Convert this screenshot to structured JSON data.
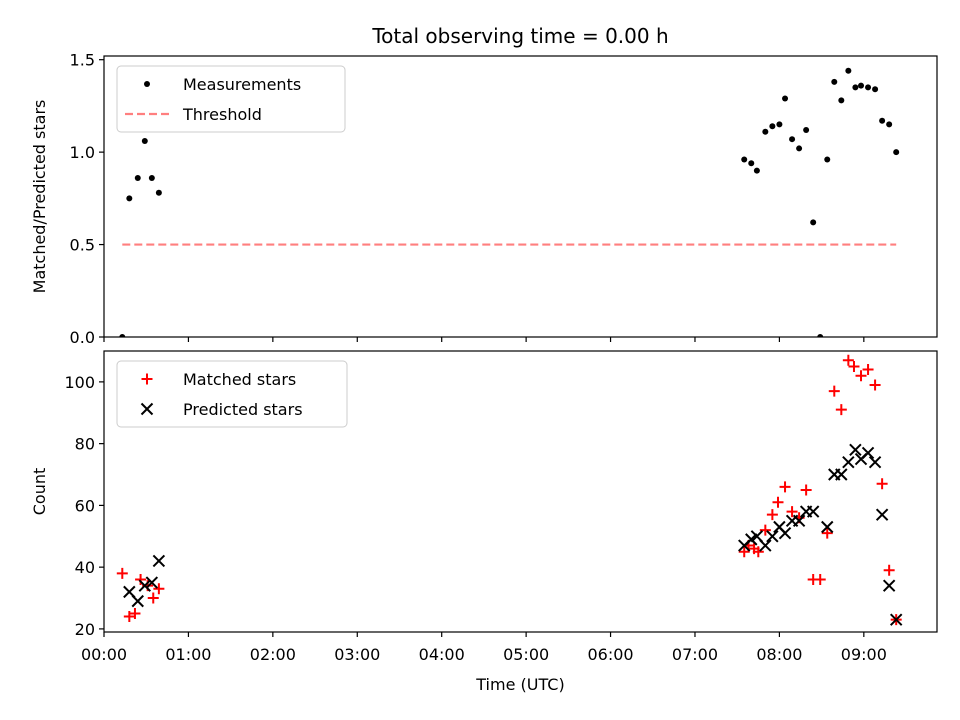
{
  "chart_data": [
    {
      "type": "scatter",
      "title": "Total observing time = 0.00 h",
      "xlabel": "",
      "ylabel": "Matched/Predicted stars",
      "ylim": [
        0,
        1.52
      ],
      "xlim": [
        "00:00",
        "09:52"
      ],
      "yticks": [
        "0.0",
        "0.5",
        "1.0",
        "1.5"
      ],
      "legend_position": "top-left",
      "grid": false,
      "series": [
        {
          "name": "Measurements",
          "marker": "dot",
          "color": "#000000",
          "points": [
            [
              "00:13",
              0.0
            ],
            [
              "00:18",
              0.75
            ],
            [
              "00:24",
              0.86
            ],
            [
              "00:29",
              1.06
            ],
            [
              "00:34",
              0.86
            ],
            [
              "00:39",
              0.78
            ],
            [
              "07:35",
              0.96
            ],
            [
              "07:40",
              0.94
            ],
            [
              "07:44",
              0.9
            ],
            [
              "07:50",
              1.11
            ],
            [
              "07:55",
              1.14
            ],
            [
              "08:00",
              1.15
            ],
            [
              "08:04",
              1.29
            ],
            [
              "08:09",
              1.07
            ],
            [
              "08:14",
              1.02
            ],
            [
              "08:19",
              1.12
            ],
            [
              "08:24",
              0.62
            ],
            [
              "08:29",
              0.0
            ],
            [
              "08:34",
              0.96
            ],
            [
              "08:39",
              1.38
            ],
            [
              "08:44",
              1.28
            ],
            [
              "08:49",
              1.44
            ],
            [
              "08:54",
              1.35
            ],
            [
              "08:58",
              1.36
            ],
            [
              "09:03",
              1.35
            ],
            [
              "09:08",
              1.34
            ],
            [
              "09:13",
              1.17
            ],
            [
              "09:18",
              1.15
            ],
            [
              "09:23",
              1.0
            ]
          ]
        },
        {
          "name": "Threshold",
          "marker": "dashed-line",
          "color": "#ff7f7f",
          "points": [
            [
              "00:13",
              0.5
            ],
            [
              "09:23",
              0.5
            ]
          ]
        }
      ]
    },
    {
      "type": "scatter",
      "title": "",
      "xlabel": "Time (UTC)",
      "ylabel": "Count",
      "ylim": [
        19,
        110
      ],
      "xlim": [
        "00:00",
        "09:52"
      ],
      "yticks": [
        "20",
        "40",
        "60",
        "80",
        "100"
      ],
      "xticks": [
        "00:00",
        "01:00",
        "02:00",
        "03:00",
        "04:00",
        "05:00",
        "06:00",
        "07:00",
        "08:00",
        "09:00"
      ],
      "legend_position": "top-left",
      "grid": false,
      "series": [
        {
          "name": "Matched stars",
          "marker": "plus",
          "color": "#ff0000",
          "points": [
            [
              "00:13",
              38
            ],
            [
              "00:18",
              24
            ],
            [
              "00:22",
              25
            ],
            [
              "00:26",
              36
            ],
            [
              "00:31",
              34
            ],
            [
              "00:35",
              30
            ],
            [
              "00:39",
              33
            ],
            [
              "07:35",
              45
            ],
            [
              "07:38",
              47
            ],
            [
              "07:42",
              46
            ],
            [
              "07:45",
              45
            ],
            [
              "07:50",
              52
            ],
            [
              "07:55",
              57
            ],
            [
              "07:59",
              61
            ],
            [
              "08:04",
              66
            ],
            [
              "08:09",
              58
            ],
            [
              "08:14",
              56
            ],
            [
              "08:19",
              65
            ],
            [
              "08:24",
              36
            ],
            [
              "08:29",
              36
            ],
            [
              "08:34",
              51
            ],
            [
              "08:39",
              97
            ],
            [
              "08:44",
              91
            ],
            [
              "08:49",
              107
            ],
            [
              "08:53",
              105
            ],
            [
              "08:58",
              102
            ],
            [
              "09:03",
              104
            ],
            [
              "09:08",
              99
            ],
            [
              "09:13",
              67
            ],
            [
              "09:18",
              39
            ],
            [
              "09:23",
              23
            ]
          ]
        },
        {
          "name": "Predicted stars",
          "marker": "x",
          "color": "#000000",
          "points": [
            [
              "00:18",
              32
            ],
            [
              "00:24",
              29
            ],
            [
              "00:29",
              34
            ],
            [
              "00:34",
              35
            ],
            [
              "00:39",
              42
            ],
            [
              "07:35",
              47
            ],
            [
              "07:40",
              49
            ],
            [
              "07:44",
              50
            ],
            [
              "07:50",
              47
            ],
            [
              "07:55",
              50
            ],
            [
              "08:00",
              53
            ],
            [
              "08:04",
              51
            ],
            [
              "08:09",
              55
            ],
            [
              "08:14",
              55
            ],
            [
              "08:19",
              58
            ],
            [
              "08:24",
              58
            ],
            [
              "08:34",
              53
            ],
            [
              "08:39",
              70
            ],
            [
              "08:44",
              70
            ],
            [
              "08:49",
              74
            ],
            [
              "08:54",
              78
            ],
            [
              "08:58",
              75
            ],
            [
              "09:03",
              77
            ],
            [
              "09:08",
              74
            ],
            [
              "09:13",
              57
            ],
            [
              "09:18",
              34
            ],
            [
              "09:23",
              23
            ]
          ]
        }
      ]
    }
  ]
}
